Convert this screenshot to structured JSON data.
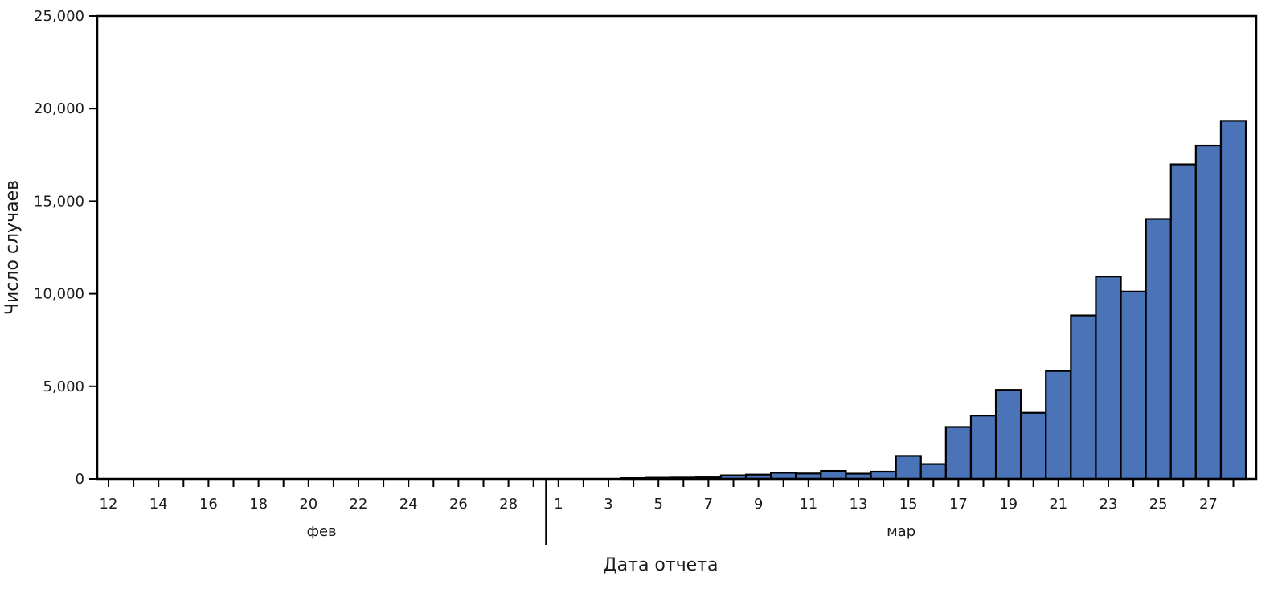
{
  "chart_data": {
    "type": "bar",
    "title": "",
    "xlabel": "Дата отчета",
    "ylabel": "Число случаев",
    "ylim": [
      0,
      25000
    ],
    "yticks": [
      0,
      5000,
      10000,
      15000,
      20000,
      25000
    ],
    "ytick_labels": [
      "0",
      "5,000",
      "10,000",
      "15,000",
      "20,000",
      "25,000"
    ],
    "grid": false,
    "bar_color": "#4a73b8",
    "months": [
      {
        "label": "фев",
        "from": "2020-02-12",
        "to": "2020-02-29"
      },
      {
        "label": "мар",
        "from": "2020-03-01",
        "to": "2020-03-28"
      }
    ],
    "x_tick_labels": [
      "12",
      "14",
      "16",
      "18",
      "20",
      "22",
      "24",
      "26",
      "28",
      "1",
      "3",
      "5",
      "7",
      "9",
      "11",
      "13",
      "15",
      "17",
      "19",
      "21",
      "23",
      "25",
      "27"
    ],
    "categories": [
      "2020-02-12",
      "2020-02-13",
      "2020-02-14",
      "2020-02-15",
      "2020-02-16",
      "2020-02-17",
      "2020-02-18",
      "2020-02-19",
      "2020-02-20",
      "2020-02-21",
      "2020-02-22",
      "2020-02-23",
      "2020-02-24",
      "2020-02-25",
      "2020-02-26",
      "2020-02-27",
      "2020-02-28",
      "2020-02-29",
      "2020-03-01",
      "2020-03-02",
      "2020-03-03",
      "2020-03-04",
      "2020-03-05",
      "2020-03-06",
      "2020-03-07",
      "2020-03-08",
      "2020-03-09",
      "2020-03-10",
      "2020-03-11",
      "2020-03-12",
      "2020-03-13",
      "2020-03-14",
      "2020-03-15",
      "2020-03-16",
      "2020-03-17",
      "2020-03-18",
      "2020-03-19",
      "2020-03-20",
      "2020-03-21",
      "2020-03-22",
      "2020-03-23",
      "2020-03-24",
      "2020-03-25",
      "2020-03-26",
      "2020-03-27",
      "2020-03-28"
    ],
    "values": [
      0,
      0,
      0,
      0,
      0,
      0,
      0,
      0,
      0,
      0,
      0,
      0,
      0,
      0,
      0,
      0,
      0,
      0,
      0,
      0,
      0,
      40,
      60,
      70,
      80,
      190,
      230,
      330,
      290,
      430,
      280,
      390,
      1240,
      800,
      2800,
      3420,
      4810,
      3570,
      5830,
      8830,
      10930,
      10120,
      14040,
      16990,
      18010,
      19340
    ]
  }
}
